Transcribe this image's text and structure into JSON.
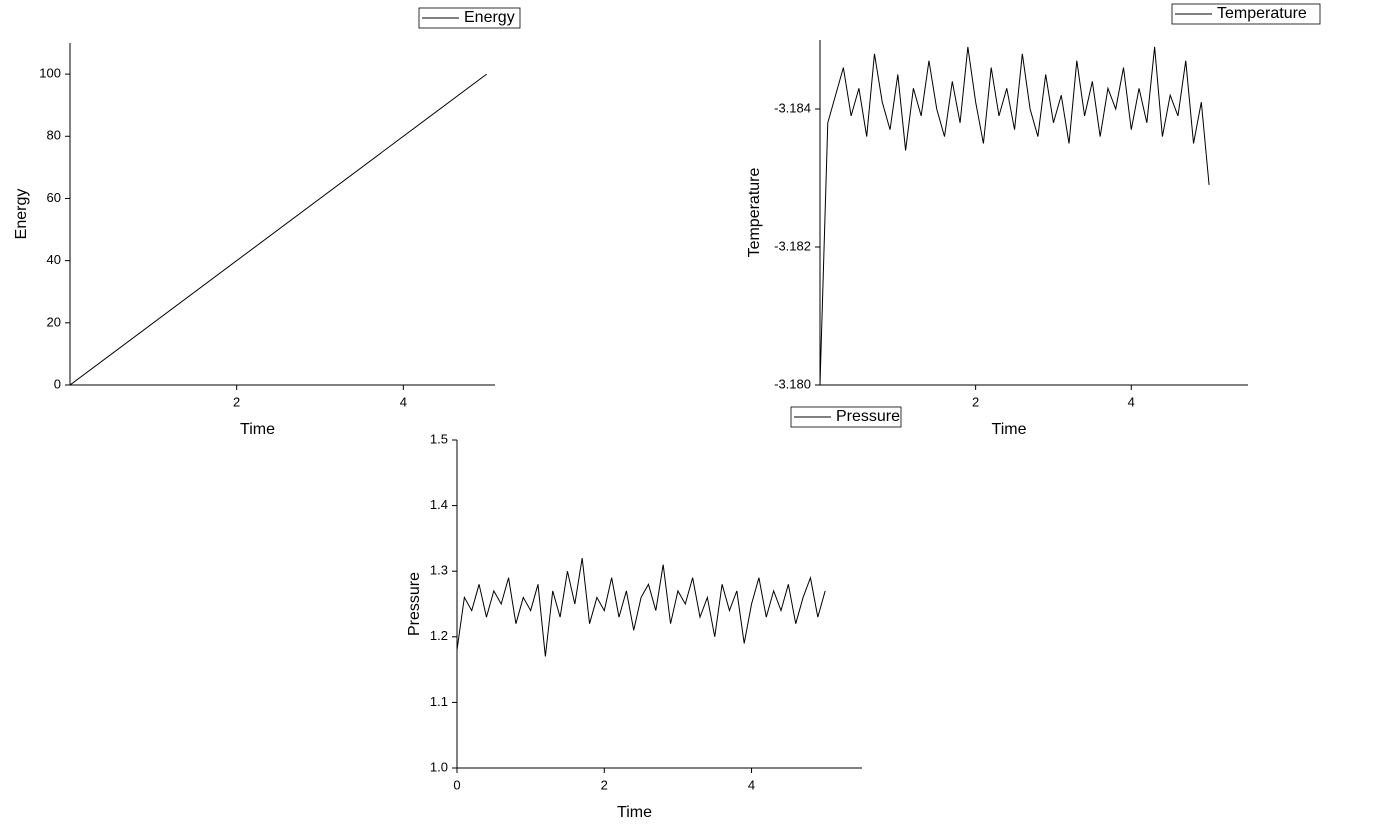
{
  "chart_data": [
    {
      "type": "line",
      "x_label": "Time",
      "y_label": "Energy",
      "x": [
        0,
        5
      ],
      "series": [
        {
          "name": "Energy",
          "color": "#000000",
          "values": [
            0,
            100
          ]
        }
      ],
      "xlim": [
        0,
        5.1
      ],
      "ylim": [
        0,
        110
      ],
      "xticks": [
        2,
        4
      ],
      "yticks": [
        0,
        20,
        40,
        60,
        80,
        100
      ]
    },
    {
      "type": "line",
      "x_label": "Time",
      "y_label": "Temperature",
      "x": [
        0,
        0.1,
        0.2,
        0.3,
        0.4,
        0.5,
        0.6,
        0.7,
        0.8,
        0.9,
        1,
        1.1,
        1.2,
        1.3,
        1.4,
        1.5,
        1.6,
        1.7,
        1.8,
        1.9,
        2,
        2.1,
        2.2,
        2.3,
        2.4,
        2.5,
        2.6,
        2.7,
        2.8,
        2.9,
        3,
        3.1,
        3.2,
        3.3,
        3.4,
        3.5,
        3.6,
        3.7,
        3.8,
        3.9,
        4,
        4.1,
        4.2,
        4.3,
        4.4,
        4.5,
        4.6,
        4.7,
        4.8,
        4.9,
        5
      ],
      "series": [
        {
          "name": "Temperature",
          "color": "#000000",
          "values": [
            -3.18,
            -3.1838,
            -3.1842,
            -3.1846,
            -3.1839,
            -3.1843,
            -3.1836,
            -3.1848,
            -3.1841,
            -3.1837,
            -3.1845,
            -3.1834,
            -3.1843,
            -3.1839,
            -3.1847,
            -3.184,
            -3.1836,
            -3.1844,
            -3.1838,
            -3.1849,
            -3.1841,
            -3.1835,
            -3.1846,
            -3.1839,
            -3.1843,
            -3.1837,
            -3.1848,
            -3.184,
            -3.1836,
            -3.1845,
            -3.1838,
            -3.1842,
            -3.1835,
            -3.1847,
            -3.1839,
            -3.1844,
            -3.1836,
            -3.1843,
            -3.184,
            -3.1846,
            -3.1837,
            -3.1843,
            -3.1838,
            -3.1849,
            -3.1836,
            -3.1842,
            -3.1839,
            -3.1847,
            -3.1835,
            -3.1841,
            -3.1829
          ]
        }
      ],
      "xlim": [
        0,
        5.5
      ],
      "ylim": [
        -3.18,
        -3.185
      ],
      "xticks": [
        2,
        4
      ],
      "yticks": [
        {
          "value": -3.18,
          "label": "-3.180"
        },
        -3.182,
        -3.184
      ]
    },
    {
      "type": "line",
      "x_label": "Time",
      "y_label": "Pressure",
      "x": [
        0,
        0.1,
        0.2,
        0.3,
        0.4,
        0.5,
        0.6,
        0.7,
        0.8,
        0.9,
        1,
        1.1,
        1.2,
        1.3,
        1.4,
        1.5,
        1.6,
        1.7,
        1.8,
        1.9,
        2,
        2.1,
        2.2,
        2.3,
        2.4,
        2.5,
        2.6,
        2.7,
        2.8,
        2.9,
        3,
        3.1,
        3.2,
        3.3,
        3.4,
        3.5,
        3.6,
        3.7,
        3.8,
        3.9,
        4,
        4.1,
        4.2,
        4.3,
        4.4,
        4.5,
        4.6,
        4.7,
        4.8,
        4.9,
        5
      ],
      "series": [
        {
          "name": "Pressure",
          "color": "#000000",
          "values": [
            1.18,
            1.26,
            1.24,
            1.28,
            1.23,
            1.27,
            1.25,
            1.29,
            1.22,
            1.26,
            1.24,
            1.28,
            1.17,
            1.27,
            1.23,
            1.3,
            1.25,
            1.32,
            1.22,
            1.26,
            1.24,
            1.29,
            1.23,
            1.27,
            1.21,
            1.26,
            1.28,
            1.24,
            1.31,
            1.22,
            1.27,
            1.25,
            1.29,
            1.23,
            1.26,
            1.2,
            1.28,
            1.24,
            1.27,
            1.19,
            1.25,
            1.29,
            1.23,
            1.27,
            1.24,
            1.28,
            1.22,
            1.26,
            1.29,
            1.23,
            1.27
          ]
        }
      ],
      "xlim": [
        0,
        5.5
      ],
      "ylim": [
        1,
        1.5
      ],
      "xticks": [
        0,
        2,
        4
      ],
      "yticks": [
        {
          "value": 1,
          "label": "1.0"
        },
        1.1,
        1.2,
        1.3,
        1.4,
        1.5
      ]
    }
  ]
}
